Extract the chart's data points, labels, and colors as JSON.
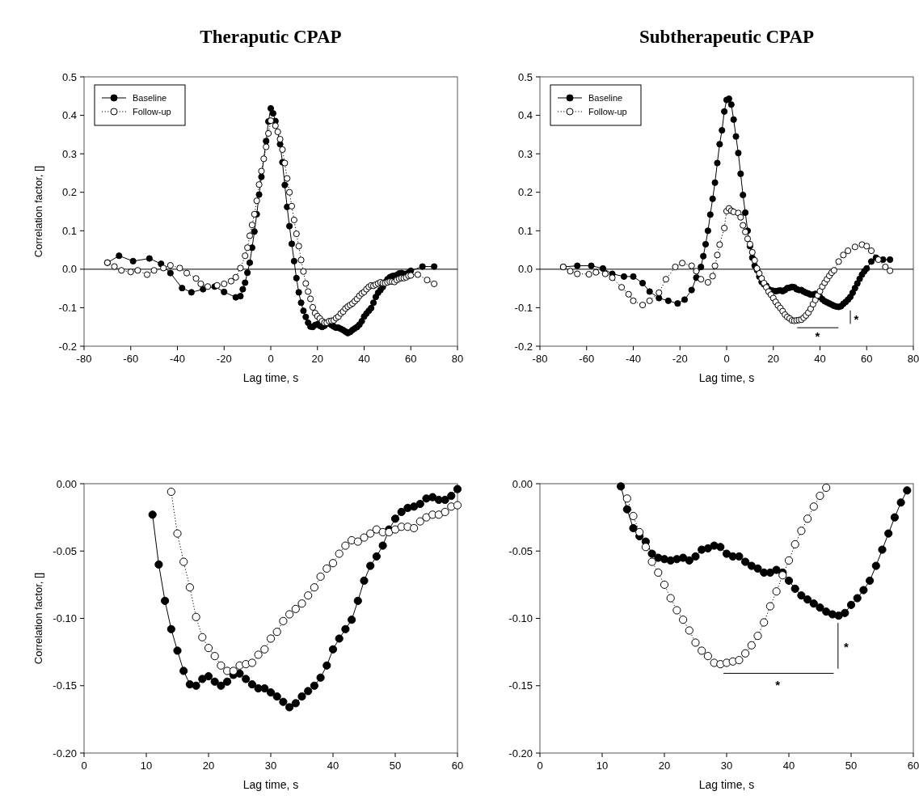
{
  "chart_data": [
    {
      "type": "line",
      "title": "Theraputic CPAP",
      "xlabel": "Lag time, s",
      "ylabel": "Correlation factor, []",
      "xlim": [
        -80,
        80
      ],
      "xticks": [
        -80,
        -60,
        -40,
        -20,
        0,
        20,
        40,
        60,
        80
      ],
      "ylim": [
        -0.2,
        0.5
      ],
      "yticks": [
        -0.2,
        -0.1,
        {
          "value": 0,
          "label": "0.0"
        },
        0.1,
        0.2,
        0.3,
        0.4,
        0.5
      ],
      "legend": "top left",
      "marker": "circle",
      "grid": false,
      "ref_lines": [
        {
          "axis": "y",
          "value": 0
        }
      ],
      "series": [
        {
          "name": "Baseline",
          "color": "#000000",
          "line_style": "solid",
          "x": [
            -70,
            -65,
            -59,
            -52,
            -47,
            -43,
            -38,
            -34,
            -29,
            -24,
            -20,
            -15,
            -13,
            -12,
            -11,
            -10,
            -9,
            -8,
            -7,
            -6,
            -5,
            -4,
            -2,
            -1,
            0,
            1,
            2,
            4,
            5,
            6,
            7,
            8,
            9,
            10,
            11,
            12,
            13,
            14,
            15,
            16,
            17,
            18,
            19,
            20,
            21,
            22,
            23,
            24,
            25,
            26,
            27,
            28,
            29,
            30,
            31,
            32,
            33,
            34,
            35,
            36,
            37,
            38,
            39,
            40,
            41,
            42,
            43,
            44,
            45,
            46,
            47,
            48,
            49,
            50,
            51,
            52,
            53,
            54,
            55,
            56,
            57,
            58,
            59,
            60,
            65,
            70
          ],
          "values": [
            0.017,
            0.035,
            0.021,
            0.028,
            0.014,
            -0.01,
            -0.049,
            -0.06,
            -0.052,
            -0.045,
            -0.059,
            -0.073,
            -0.07,
            -0.052,
            -0.035,
            -0.009,
            0.017,
            0.056,
            0.098,
            0.143,
            0.194,
            0.24,
            0.333,
            0.384,
            0.418,
            0.405,
            0.385,
            0.325,
            0.278,
            0.219,
            0.162,
            0.112,
            0.066,
            0.021,
            -0.023,
            -0.06,
            -0.087,
            -0.108,
            -0.124,
            -0.139,
            -0.149,
            -0.15,
            -0.145,
            -0.143,
            -0.147,
            -0.15,
            -0.147,
            -0.142,
            -0.141,
            -0.145,
            -0.149,
            -0.152,
            -0.152,
            -0.155,
            -0.158,
            -0.162,
            -0.166,
            -0.163,
            -0.158,
            -0.154,
            -0.15,
            -0.144,
            -0.135,
            -0.123,
            -0.115,
            -0.108,
            -0.101,
            -0.087,
            -0.072,
            -0.061,
            -0.054,
            -0.046,
            -0.034,
            -0.026,
            -0.021,
            -0.018,
            -0.017,
            -0.015,
            -0.011,
            -0.01,
            -0.012,
            -0.012,
            -0.009,
            -0.004,
            0.007,
            0.007
          ]
        },
        {
          "name": "Follow-up",
          "color": "#ffffff",
          "line_style": "dotted",
          "x": [
            -70,
            -67,
            -64,
            -60,
            -57,
            -53,
            -50,
            -46,
            -43,
            -39,
            -36,
            -32,
            -30,
            -27,
            -23,
            -20,
            -17,
            -15,
            -13,
            -11,
            -10,
            -9,
            -8,
            -7,
            -6,
            -5,
            -4,
            -3,
            -2,
            -1,
            0,
            2,
            3,
            4,
            5,
            6,
            7,
            8,
            9,
            10,
            11,
            12,
            13,
            14,
            15,
            16,
            17,
            18,
            19,
            20,
            21,
            22,
            23,
            24,
            25,
            26,
            27,
            28,
            29,
            30,
            31,
            32,
            33,
            34,
            35,
            36,
            37,
            38,
            39,
            40,
            41,
            42,
            43,
            44,
            45,
            46,
            47,
            48,
            49,
            50,
            51,
            52,
            53,
            54,
            55,
            56,
            57,
            58,
            59,
            60,
            63,
            67,
            70
          ],
          "values": [
            0.017,
            0.007,
            -0.003,
            -0.007,
            -0.003,
            -0.014,
            -0.003,
            0.003,
            0.01,
            0.003,
            -0.01,
            -0.024,
            -0.038,
            -0.045,
            -0.042,
            -0.038,
            -0.031,
            -0.021,
            0.003,
            0.035,
            0.056,
            0.087,
            0.115,
            0.143,
            0.178,
            0.22,
            0.255,
            0.287,
            0.318,
            0.353,
            0.386,
            0.373,
            0.357,
            0.338,
            0.311,
            0.276,
            0.236,
            0.2,
            0.164,
            0.128,
            0.092,
            0.06,
            0.024,
            -0.006,
            -0.037,
            -0.058,
            -0.077,
            -0.099,
            -0.114,
            -0.122,
            -0.128,
            -0.135,
            -0.139,
            -0.139,
            -0.135,
            -0.134,
            -0.133,
            -0.127,
            -0.123,
            -0.115,
            -0.11,
            -0.102,
            -0.097,
            -0.093,
            -0.089,
            -0.083,
            -0.077,
            -0.069,
            -0.063,
            -0.059,
            -0.052,
            -0.046,
            -0.042,
            -0.043,
            -0.04,
            -0.037,
            -0.034,
            -0.036,
            -0.036,
            -0.034,
            -0.032,
            -0.032,
            -0.033,
            -0.028,
            -0.025,
            -0.023,
            -0.023,
            -0.021,
            -0.017,
            -0.016,
            -0.014,
            -0.028,
            -0.038
          ]
        }
      ]
    },
    {
      "type": "line",
      "title": "Subtherapeutic CPAP",
      "xlabel": "Lag time, s",
      "xlim": [
        -80,
        80
      ],
      "xticks": [
        -80,
        -60,
        -40,
        -20,
        0,
        20,
        40,
        60,
        80
      ],
      "ylim": [
        -0.2,
        0.5
      ],
      "yticks": [
        -0.2,
        -0.1,
        {
          "value": 0,
          "label": "0.0"
        },
        0.1,
        0.2,
        0.3,
        0.4,
        0.5
      ],
      "legend": "top left",
      "marker": "circle",
      "grid": false,
      "ref_lines": [
        {
          "axis": "y",
          "value": 0
        }
      ],
      "annotations": [
        "*",
        "*"
      ],
      "series": [
        {
          "name": "Baseline",
          "color": "#000000",
          "line_style": "solid",
          "x": [
            -70,
            -64,
            -58,
            -53,
            -49,
            -44,
            -40,
            -36,
            -33,
            -29,
            -25,
            -21,
            -18,
            -15,
            -13,
            -11,
            -10,
            -9,
            -8,
            -7,
            -6,
            -5,
            -4,
            -3,
            -2,
            -1,
            0,
            1,
            2,
            3,
            4,
            5,
            6,
            7,
            8,
            9,
            10,
            11,
            12,
            13,
            14,
            15,
            16,
            17,
            18,
            19,
            20,
            21,
            22,
            23,
            24,
            25,
            26,
            27,
            28,
            29,
            30,
            31,
            32,
            33,
            34,
            35,
            36,
            37,
            38,
            39,
            40,
            41,
            42,
            43,
            44,
            45,
            46,
            47,
            48,
            49,
            50,
            51,
            52,
            53,
            54,
            55,
            56,
            57,
            58,
            59,
            60,
            62,
            64,
            67,
            70
          ],
          "values": [
            0.006,
            0.009,
            0.009,
            0.002,
            -0.012,
            -0.019,
            -0.019,
            -0.036,
            -0.058,
            -0.075,
            -0.082,
            -0.089,
            -0.079,
            -0.054,
            -0.022,
            0.006,
            0.034,
            0.065,
            0.1,
            0.142,
            0.183,
            0.225,
            0.276,
            0.325,
            0.361,
            0.41,
            0.44,
            0.443,
            0.428,
            0.389,
            0.345,
            0.302,
            0.248,
            0.193,
            0.147,
            0.1,
            0.06,
            0.03,
            0.009,
            -0.002,
            -0.019,
            -0.033,
            -0.039,
            -0.043,
            -0.052,
            -0.055,
            -0.056,
            -0.057,
            -0.056,
            -0.055,
            -0.057,
            -0.054,
            -0.049,
            -0.048,
            -0.046,
            -0.047,
            -0.052,
            -0.054,
            -0.054,
            -0.058,
            -0.061,
            -0.063,
            -0.066,
            -0.066,
            -0.064,
            -0.066,
            -0.072,
            -0.078,
            -0.083,
            -0.086,
            -0.089,
            -0.092,
            -0.095,
            -0.097,
            -0.098,
            -0.096,
            -0.09,
            -0.085,
            -0.079,
            -0.072,
            -0.061,
            -0.049,
            -0.037,
            -0.025,
            -0.014,
            -0.005,
            0.002,
            0.02,
            0.03,
            0.025,
            0.025
          ]
        },
        {
          "name": "Follow-up",
          "color": "#ffffff",
          "line_style": "dotted",
          "x": [
            -70,
            -67,
            -64,
            -59,
            -56,
            -52,
            -49,
            -45,
            -42,
            -40,
            -36,
            -33,
            -29,
            -26,
            -22,
            -19,
            -15,
            -13,
            -11,
            -8,
            -6,
            -5,
            -4,
            -3,
            -1,
            0,
            1,
            2,
            3,
            5,
            6,
            7,
            8,
            9,
            10,
            11,
            12,
            13,
            14,
            15,
            16,
            17,
            18,
            19,
            20,
            21,
            22,
            23,
            24,
            25,
            26,
            27,
            28,
            29,
            30,
            31,
            32,
            33,
            34,
            35,
            36,
            37,
            38,
            39,
            40,
            41,
            42,
            43,
            44,
            45,
            46,
            48,
            50,
            52,
            55,
            58,
            60,
            62,
            65,
            68,
            70
          ],
          "values": [
            0.006,
            -0.005,
            -0.012,
            -0.013,
            -0.008,
            -0.012,
            -0.022,
            -0.047,
            -0.065,
            -0.082,
            -0.093,
            -0.082,
            -0.061,
            -0.026,
            0.006,
            0.016,
            0.009,
            -0.005,
            -0.026,
            -0.034,
            -0.018,
            0.009,
            0.037,
            0.064,
            0.107,
            0.151,
            0.158,
            0.152,
            0.149,
            0.146,
            0.135,
            0.114,
            0.097,
            0.079,
            0.065,
            0.044,
            0.023,
            0.002,
            -0.011,
            -0.024,
            -0.036,
            -0.047,
            -0.058,
            -0.066,
            -0.075,
            -0.085,
            -0.094,
            -0.101,
            -0.109,
            -0.118,
            -0.124,
            -0.128,
            -0.133,
            -0.134,
            -0.133,
            -0.132,
            -0.131,
            -0.126,
            -0.12,
            -0.113,
            -0.103,
            -0.091,
            -0.08,
            -0.068,
            -0.057,
            -0.045,
            -0.035,
            -0.026,
            -0.017,
            -0.009,
            -0.003,
            0.02,
            0.037,
            0.048,
            0.058,
            0.064,
            0.06,
            0.048,
            0.025,
            0.006,
            -0.004
          ]
        }
      ]
    },
    {
      "type": "line",
      "xlabel": "Lag time, s",
      "ylabel": "Correlation factor, []",
      "xlim": [
        0,
        60
      ],
      "xticks": [
        0,
        10,
        20,
        30,
        40,
        50,
        60
      ],
      "ylim": [
        -0.2,
        0
      ],
      "yticks": [
        {
          "value": -0.2,
          "label": "-0.20"
        },
        {
          "value": -0.15,
          "label": "-0.15"
        },
        {
          "value": -0.1,
          "label": "-0.10"
        },
        {
          "value": -0.05,
          "label": "-0.05"
        },
        {
          "value": 0,
          "label": "0.00"
        }
      ],
      "marker": "circle",
      "grid": false,
      "series": [
        {
          "color": "#000000",
          "line_style": "solid",
          "x": [
            11,
            12,
            13,
            14,
            15,
            16,
            17,
            18,
            19,
            20,
            21,
            22,
            23,
            24,
            25,
            26,
            27,
            28,
            29,
            30,
            31,
            32,
            33,
            34,
            35,
            36,
            37,
            38,
            39,
            40,
            41,
            42,
            43,
            44,
            45,
            46,
            47,
            48,
            49,
            50,
            51,
            52,
            53,
            54,
            55,
            56,
            57,
            58,
            59,
            60
          ],
          "values": [
            -0.023,
            -0.06,
            -0.087,
            -0.108,
            -0.124,
            -0.139,
            -0.149,
            -0.15,
            -0.145,
            -0.143,
            -0.147,
            -0.15,
            -0.147,
            -0.142,
            -0.141,
            -0.145,
            -0.149,
            -0.152,
            -0.152,
            -0.155,
            -0.158,
            -0.162,
            -0.166,
            -0.163,
            -0.158,
            -0.154,
            -0.15,
            -0.144,
            -0.135,
            -0.123,
            -0.115,
            -0.108,
            -0.101,
            -0.087,
            -0.072,
            -0.061,
            -0.054,
            -0.046,
            -0.034,
            -0.026,
            -0.021,
            -0.018,
            -0.017,
            -0.015,
            -0.011,
            -0.01,
            -0.012,
            -0.012,
            -0.009,
            -0.004
          ]
        },
        {
          "color": "#ffffff",
          "line_style": "dotted",
          "x": [
            14,
            15,
            16,
            17,
            18,
            19,
            20,
            21,
            22,
            23,
            24,
            25,
            26,
            27,
            28,
            29,
            30,
            31,
            32,
            33,
            34,
            35,
            36,
            37,
            38,
            39,
            40,
            41,
            42,
            43,
            44,
            45,
            46,
            47,
            48,
            49,
            50,
            51,
            52,
            53,
            54,
            55,
            56,
            57,
            58,
            59,
            60
          ],
          "values": [
            -0.006,
            -0.037,
            -0.058,
            -0.077,
            -0.099,
            -0.114,
            -0.122,
            -0.128,
            -0.135,
            -0.139,
            -0.139,
            -0.135,
            -0.134,
            -0.133,
            -0.127,
            -0.123,
            -0.115,
            -0.11,
            -0.102,
            -0.097,
            -0.093,
            -0.089,
            -0.083,
            -0.077,
            -0.069,
            -0.063,
            -0.059,
            -0.052,
            -0.046,
            -0.042,
            -0.043,
            -0.04,
            -0.037,
            -0.034,
            -0.036,
            -0.036,
            -0.034,
            -0.032,
            -0.032,
            -0.033,
            -0.028,
            -0.025,
            -0.023,
            -0.023,
            -0.021,
            -0.017,
            -0.016
          ]
        }
      ]
    },
    {
      "type": "line",
      "xlabel": "Lag time, s",
      "xlim": [
        0,
        60
      ],
      "xticks": [
        0,
        10,
        20,
        30,
        40,
        50,
        60
      ],
      "ylim": [
        -0.2,
        0
      ],
      "yticks": [
        {
          "value": -0.2,
          "label": "-0.20"
        },
        {
          "value": -0.15,
          "label": "-0.15"
        },
        {
          "value": -0.1,
          "label": "-0.10"
        },
        {
          "value": -0.05,
          "label": "-0.05"
        },
        {
          "value": 0,
          "label": "0.00"
        }
      ],
      "marker": "circle",
      "grid": false,
      "annotations": [
        "*",
        "*"
      ],
      "series": [
        {
          "color": "#000000",
          "line_style": "solid",
          "x": [
            13,
            14,
            15,
            16,
            17,
            18,
            19,
            20,
            21,
            22,
            23,
            24,
            25,
            26,
            27,
            28,
            29,
            30,
            31,
            32,
            33,
            34,
            35,
            36,
            37,
            38,
            39,
            40,
            41,
            42,
            43,
            44,
            45,
            46,
            47,
            48,
            49,
            50,
            51,
            52,
            53,
            54,
            55,
            56,
            57,
            58,
            59
          ],
          "values": [
            -0.002,
            -0.019,
            -0.033,
            -0.039,
            -0.043,
            -0.052,
            -0.055,
            -0.056,
            -0.057,
            -0.056,
            -0.055,
            -0.057,
            -0.054,
            -0.049,
            -0.048,
            -0.046,
            -0.047,
            -0.052,
            -0.054,
            -0.054,
            -0.058,
            -0.061,
            -0.063,
            -0.066,
            -0.066,
            -0.064,
            -0.066,
            -0.072,
            -0.078,
            -0.083,
            -0.086,
            -0.089,
            -0.092,
            -0.095,
            -0.097,
            -0.098,
            -0.096,
            -0.09,
            -0.085,
            -0.079,
            -0.072,
            -0.061,
            -0.049,
            -0.037,
            -0.025,
            -0.014,
            -0.005
          ]
        },
        {
          "color": "#ffffff",
          "line_style": "dotted",
          "x": [
            14,
            15,
            16,
            17,
            18,
            19,
            20,
            21,
            22,
            23,
            24,
            25,
            26,
            27,
            28,
            29,
            30,
            31,
            32,
            33,
            34,
            35,
            36,
            37,
            38,
            39,
            40,
            41,
            42,
            43,
            44,
            45,
            46
          ],
          "values": [
            -0.011,
            -0.024,
            -0.036,
            -0.047,
            -0.058,
            -0.066,
            -0.075,
            -0.085,
            -0.094,
            -0.101,
            -0.109,
            -0.118,
            -0.124,
            -0.128,
            -0.133,
            -0.134,
            -0.133,
            -0.132,
            -0.131,
            -0.126,
            -0.12,
            -0.113,
            -0.103,
            -0.091,
            -0.08,
            -0.068,
            -0.057,
            -0.045,
            -0.035,
            -0.026,
            -0.017,
            -0.009,
            -0.003
          ]
        }
      ]
    }
  ]
}
